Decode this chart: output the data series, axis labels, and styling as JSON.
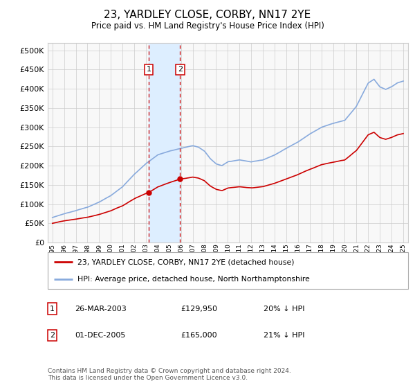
{
  "title": "23, YARDLEY CLOSE, CORBY, NN17 2YE",
  "subtitle": "Price paid vs. HM Land Registry's House Price Index (HPI)",
  "legend_line1": "23, YARDLEY CLOSE, CORBY, NN17 2YE (detached house)",
  "legend_line2": "HPI: Average price, detached house, North Northamptonshire",
  "footer": "Contains HM Land Registry data © Crown copyright and database right 2024.\nThis data is licensed under the Open Government Licence v3.0.",
  "transaction1_date": "26-MAR-2003",
  "transaction1_price": "£129,950",
  "transaction1_hpi": "20% ↓ HPI",
  "transaction2_date": "01-DEC-2005",
  "transaction2_price": "£165,000",
  "transaction2_hpi": "21% ↓ HPI",
  "vline1_x": 2003.23,
  "vline2_x": 2005.92,
  "shade_color": "#ddeeff",
  "red_color": "#cc0000",
  "blue_color": "#88aadd",
  "grid_color": "#cccccc",
  "bg_color": "#f8f8f8",
  "ylim_min": 0,
  "ylim_max": 520000,
  "xlim_min": 1994.6,
  "xlim_max": 2025.4
}
